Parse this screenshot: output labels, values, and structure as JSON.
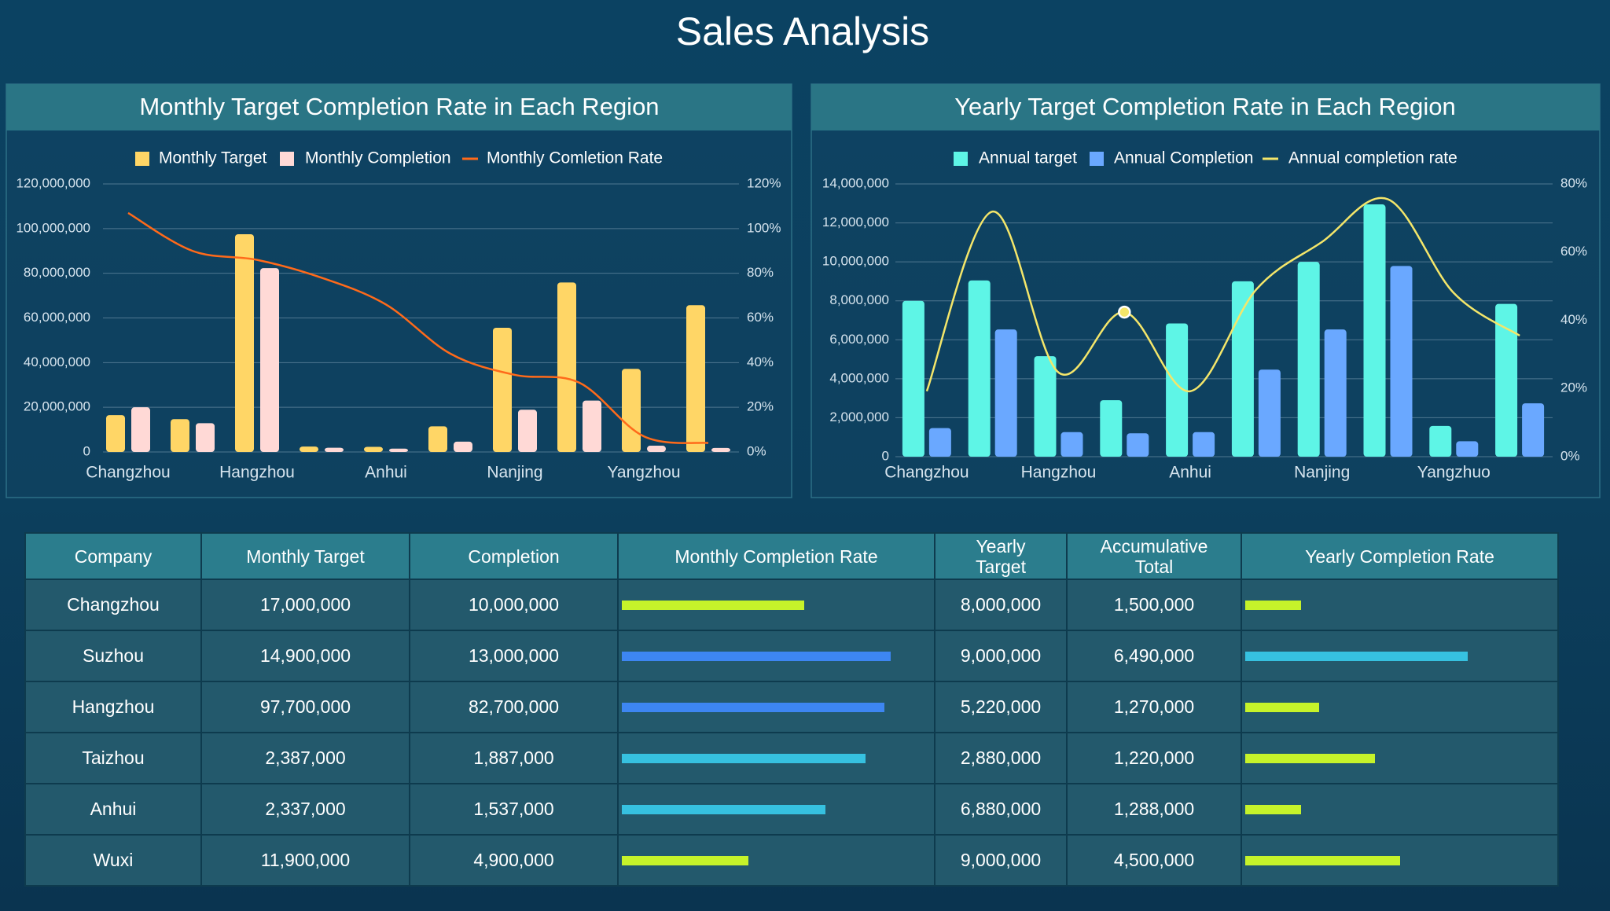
{
  "title": "Sales Analysis",
  "chart_data": [
    {
      "type": "bar",
      "title": "Monthly Target Completion Rate in Each Region",
      "categories": [
        "Changzhou",
        null,
        "Hangzhou",
        null,
        "Anhui",
        null,
        "Nanjing",
        null,
        "Yangzhou",
        null
      ],
      "series": [
        {
          "name": "Monthly Target",
          "type": "bar",
          "color": "#ffd666",
          "values": [
            16500000,
            14700000,
            97500000,
            2400000,
            2300000,
            11500000,
            55600000,
            75900000,
            37200000,
            65700000
          ]
        },
        {
          "name": "Monthly Completion",
          "type": "bar",
          "color": "#ffd9d6",
          "values": [
            20000000,
            12900000,
            82300000,
            1900000,
            1500000,
            4600000,
            18900000,
            23000000,
            2800000,
            1800000
          ]
        },
        {
          "name": "Monthly Comletion Rate",
          "type": "line",
          "axis": "y2",
          "color": "#ff6a1a",
          "values": [
            107,
            90,
            86,
            78,
            66,
            44,
            34.5,
            31,
            7,
            4
          ]
        }
      ],
      "ylim": [
        0,
        120000000
      ],
      "yticks": [
        0,
        {
          "value": 20000000,
          "label": "20,000,000"
        },
        {
          "value": 40000000,
          "label": "40,000,000"
        },
        {
          "value": 60000000,
          "label": "60,000,000"
        },
        {
          "value": 80000000,
          "label": "80,000,000"
        },
        {
          "value": 100000000,
          "label": "100,000,000"
        },
        {
          "value": 120000000,
          "label": "120,000,000"
        }
      ],
      "y2lim": [
        0,
        120
      ],
      "y2ticks": [
        {
          "value": 0,
          "label": "0%"
        },
        {
          "value": 20,
          "label": "20%"
        },
        {
          "value": 40,
          "label": "40%"
        },
        {
          "value": 60,
          "label": "60%"
        },
        {
          "value": 80,
          "label": "80%"
        },
        {
          "value": 100,
          "label": "100%"
        },
        {
          "value": 120,
          "label": "120%"
        }
      ],
      "grid": true,
      "legend": "top"
    },
    {
      "type": "bar",
      "title": "Yearly Target Completion Rate in Each Region",
      "categories": [
        "Changzhou",
        null,
        "Hangzhou",
        null,
        "Anhui",
        null,
        "Nanjing",
        null,
        "Yangzhuo",
        null
      ],
      "series": [
        {
          "name": "Annual target",
          "type": "bar",
          "color": "#5ef5e6",
          "values": [
            8000000,
            9050000,
            5160000,
            2900000,
            6840000,
            9000000,
            10000000,
            12950000,
            1580000,
            7840000
          ]
        },
        {
          "name": "Annual Completion",
          "type": "bar",
          "color": "#6aa8ff",
          "values": [
            1470000,
            6530000,
            1260000,
            1200000,
            1260000,
            4470000,
            6530000,
            9790000,
            790000,
            2740000
          ]
        },
        {
          "name": "Annual completion rate",
          "type": "line",
          "axis": "y2",
          "color": "#f4e66a",
          "values": [
            19.2,
            71.9,
            24.7,
            42.4,
            19.2,
            49,
            63,
            75.5,
            48,
            35.5
          ]
        }
      ],
      "ylim": [
        0,
        14000000
      ],
      "yticks": [
        0,
        {
          "value": 2000000,
          "label": "2,000,000"
        },
        {
          "value": 4000000,
          "label": "4,000,000"
        },
        {
          "value": 6000000,
          "label": "6,000,000"
        },
        {
          "value": 8000000,
          "label": "8,000,000"
        },
        {
          "value": 10000000,
          "label": "10,000,000"
        },
        {
          "value": 12000000,
          "label": "12,000,000"
        },
        {
          "value": 14000000,
          "label": "14,000,000"
        }
      ],
      "y2lim": [
        0,
        80
      ],
      "y2ticks": [
        {
          "value": 0,
          "label": "0%"
        },
        {
          "value": 20,
          "label": "20%"
        },
        {
          "value": 40,
          "label": "40%"
        },
        {
          "value": 60,
          "label": "60%"
        },
        {
          "value": 80,
          "label": "80%"
        }
      ],
      "grid": true,
      "legend": "top"
    }
  ],
  "table": {
    "columns": [
      "Company",
      "Monthly Target",
      "Completion",
      "Monthly Completion Rate",
      "Yearly Target",
      "Accumulative Total",
      "Yearly Completion Rate"
    ],
    "rows": [
      {
        "company": "Changzhou",
        "monthly_target": "17,000,000",
        "completion": "10,000,000",
        "monthly_rate": 59,
        "monthly_rate_color": "#c6f32a",
        "yearly_target": "8,000,000",
        "accumulative_total": "1,500,000",
        "yearly_rate": 18,
        "yearly_rate_color": "#c6f32a"
      },
      {
        "company": "Suzhou",
        "monthly_target": "14,900,000",
        "completion": "13,000,000",
        "monthly_rate": 87,
        "monthly_rate_color": "#3d86f2",
        "yearly_target": "9,000,000",
        "accumulative_total": "6,490,000",
        "yearly_rate": 72,
        "yearly_rate_color": "#36c1e0"
      },
      {
        "company": "Hangzhou",
        "monthly_target": "97,700,000",
        "completion": "82,700,000",
        "monthly_rate": 85,
        "monthly_rate_color": "#3d86f2",
        "yearly_target": "5,220,000",
        "accumulative_total": "1,270,000",
        "yearly_rate": 24,
        "yearly_rate_color": "#c6f32a"
      },
      {
        "company": "Taizhou",
        "monthly_target": "2,387,000",
        "completion": "1,887,000",
        "monthly_rate": 79,
        "monthly_rate_color": "#36c1e0",
        "yearly_target": "2,880,000",
        "accumulative_total": "1,220,000",
        "yearly_rate": 42,
        "yearly_rate_color": "#c6f32a"
      },
      {
        "company": "Anhui",
        "monthly_target": "2,337,000",
        "completion": "1,537,000",
        "monthly_rate": 66,
        "monthly_rate_color": "#36c1e0",
        "yearly_target": "6,880,000",
        "accumulative_total": "1,288,000",
        "yearly_rate": 18,
        "yearly_rate_color": "#c6f32a"
      },
      {
        "company": "Wuxi",
        "monthly_target": "11,900,000",
        "completion": "4,900,000",
        "monthly_rate": 41,
        "monthly_rate_color": "#c6f32a",
        "yearly_target": "9,000,000",
        "accumulative_total": "4,500,000",
        "yearly_rate": 50,
        "yearly_rate_color": "#c6f32a"
      }
    ]
  }
}
